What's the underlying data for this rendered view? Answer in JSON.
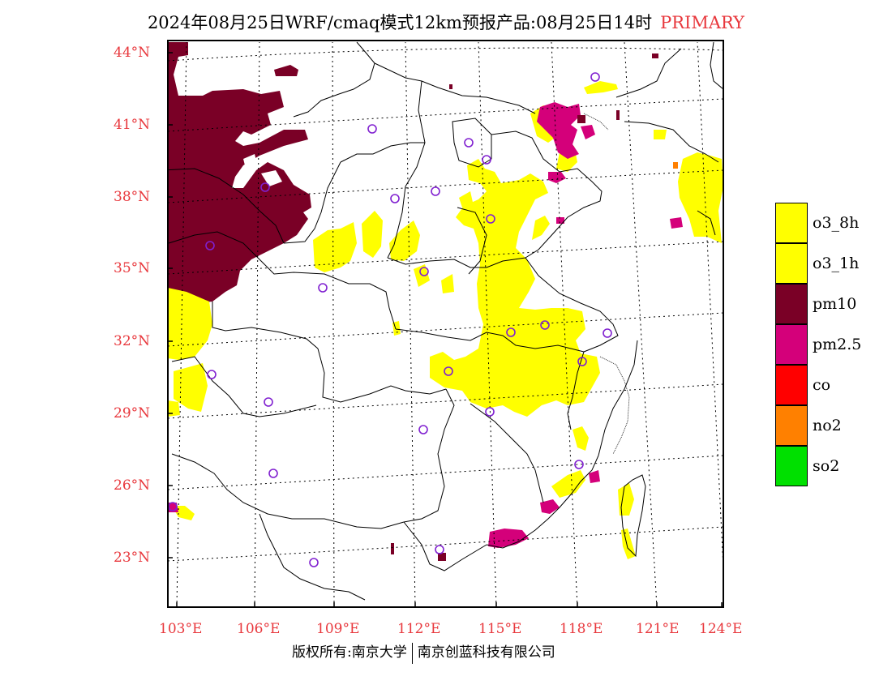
{
  "title": {
    "main": "2024年08月25日WRF/cmaq模式12km预报产品:08月25日14时",
    "tag": "PRIMARY"
  },
  "map": {
    "lat_labels": [
      "44°N",
      "41°N",
      "38°N",
      "35°N",
      "32°N",
      "29°N",
      "26°N",
      "23°N"
    ],
    "lat_values": [
      44,
      41,
      38,
      35,
      32,
      29,
      26,
      23
    ],
    "lon_labels": [
      "103°E",
      "106°E",
      "109°E",
      "112°E",
      "115°E",
      "118°E",
      "121°E",
      "124°E"
    ],
    "lon_values": [
      103,
      106,
      109,
      112,
      115,
      118,
      121,
      124
    ],
    "gridlines": "dotted",
    "station_markers": "purple circles"
  },
  "legend": {
    "items": [
      {
        "label": "o3_8h",
        "color": "#ffff00"
      },
      {
        "label": "o3_1h",
        "color": "#ffff00"
      },
      {
        "label": "pm10",
        "color": "#7a0026"
      },
      {
        "label": "pm2.5",
        "color": "#d4007a"
      },
      {
        "label": "co",
        "color": "#ff0000"
      },
      {
        "label": "no2",
        "color": "#ff8000"
      },
      {
        "label": "so2",
        "color": "#00e000"
      }
    ]
  },
  "footer": {
    "copyright": "版权所有:南京大学",
    "company": "南京创蓝科技有限公司"
  }
}
